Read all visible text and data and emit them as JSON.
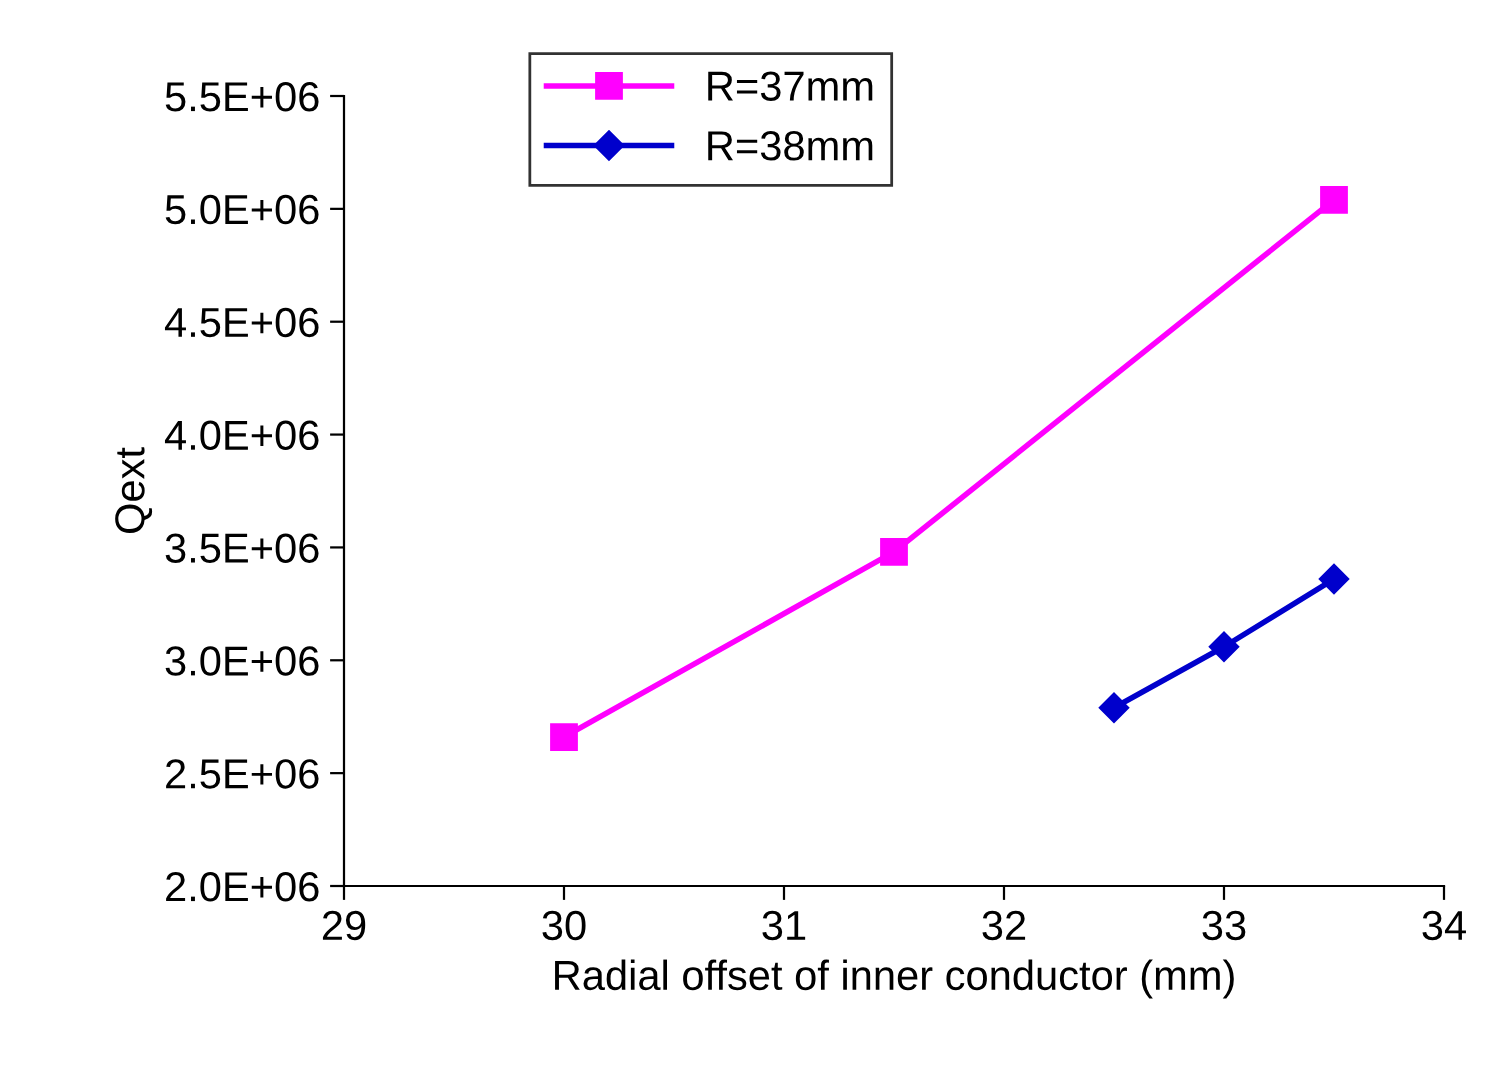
{
  "chart_data": {
    "type": "line",
    "xlabel": "Radial offset of inner conductor (mm)",
    "ylabel": "Qext",
    "xlim": [
      29,
      34
    ],
    "xticks": [
      29,
      30,
      31,
      32,
      33,
      34
    ],
    "ylim": [
      2000000,
      5500000
    ],
    "yticks": [
      {
        "value": 2000000,
        "label": "2.0E+06"
      },
      {
        "value": 2500000,
        "label": "2.5E+06"
      },
      {
        "value": 3000000,
        "label": "3.0E+06"
      },
      {
        "value": 3500000,
        "label": "3.5E+06"
      },
      {
        "value": 4000000,
        "label": "4.0E+06"
      },
      {
        "value": 4500000,
        "label": "4.5E+06"
      },
      {
        "value": 5000000,
        "label": "5.0E+06"
      },
      {
        "value": 5500000,
        "label": "5.5E+06"
      }
    ],
    "grid": false,
    "legend": "top left",
    "line_style": "solid",
    "series": [
      {
        "name": "R=37mm",
        "color": "#ff00ff",
        "marker": "square",
        "x": [
          30,
          31.5,
          33.5
        ],
        "values": [
          2660000,
          3480000,
          5040000
        ]
      },
      {
        "name": "R=38mm",
        "color": "#0000cc",
        "marker": "diamond",
        "x": [
          32.5,
          33,
          33.5
        ],
        "values": [
          2790000,
          3060000,
          3360000
        ]
      }
    ]
  }
}
